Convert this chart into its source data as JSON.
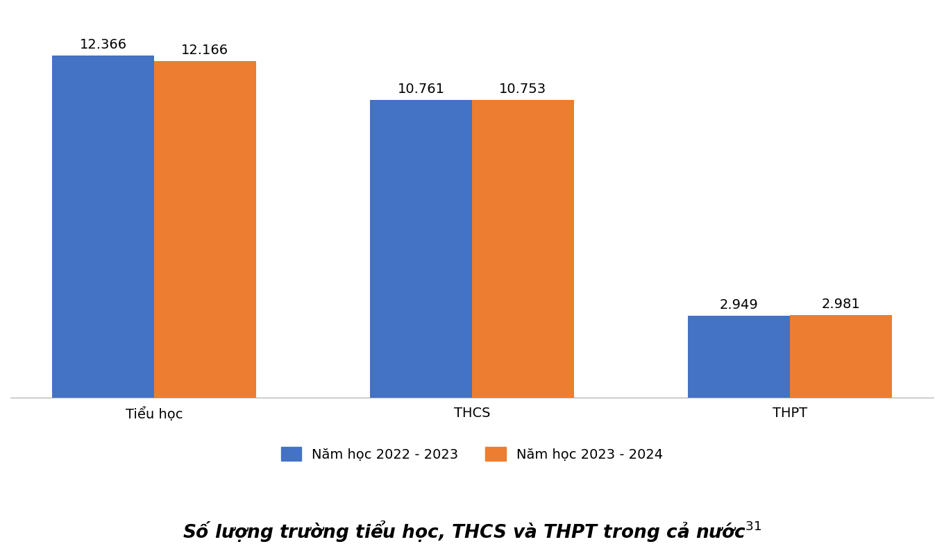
{
  "categories": [
    "Tiểu học",
    "THCS",
    "THPT"
  ],
  "series": [
    {
      "label": "Năm học 2022 - 2023",
      "values": [
        12366,
        10761,
        2949
      ],
      "color": "#4472C4"
    },
    {
      "label": "Năm học 2023 - 2024",
      "values": [
        12166,
        10753,
        2981
      ],
      "color": "#ED7D31"
    }
  ],
  "value_labels": [
    [
      "12.366",
      "12.166"
    ],
    [
      "10.761",
      "10.753"
    ],
    [
      "2.949",
      "2.981"
    ]
  ],
  "ylim": [
    0,
    14000
  ],
  "title": "Số lượng trường tiểu học, THCS và THPT trong cả nước",
  "title_superscript": "31",
  "background_color": "#FFFFFF",
  "grid_color": "#CCCCCC",
  "bar_width": 0.32,
  "tick_fontsize": 14,
  "legend_fontsize": 14,
  "title_fontsize": 19,
  "value_fontsize": 14
}
